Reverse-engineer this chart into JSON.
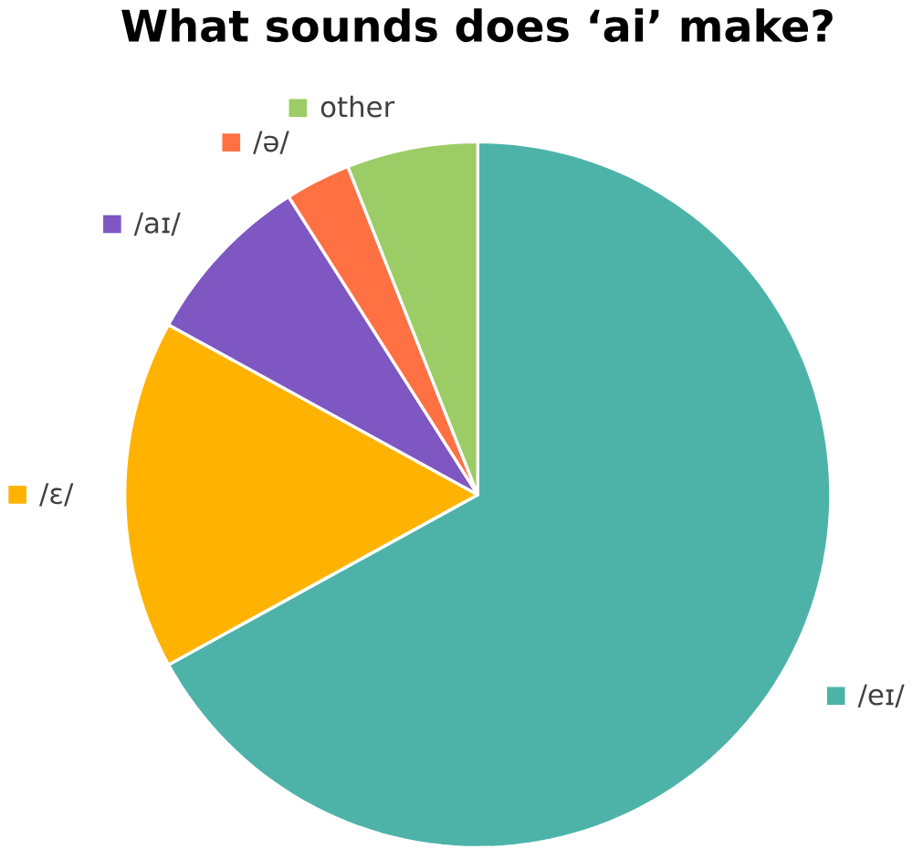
{
  "chart_data": {
    "type": "pie",
    "title": "What sounds does ‘ai’ make?",
    "categories": [
      "/eɪ/",
      "/ɛ/",
      "/aɪ/",
      "/ə/",
      "other"
    ],
    "values": [
      67,
      16,
      8,
      3,
      6
    ],
    "colors": [
      "#4db3a9",
      "#ffb300",
      "#7e57c2",
      "#ff7043",
      "#9ccc65"
    ],
    "legend": "left"
  }
}
